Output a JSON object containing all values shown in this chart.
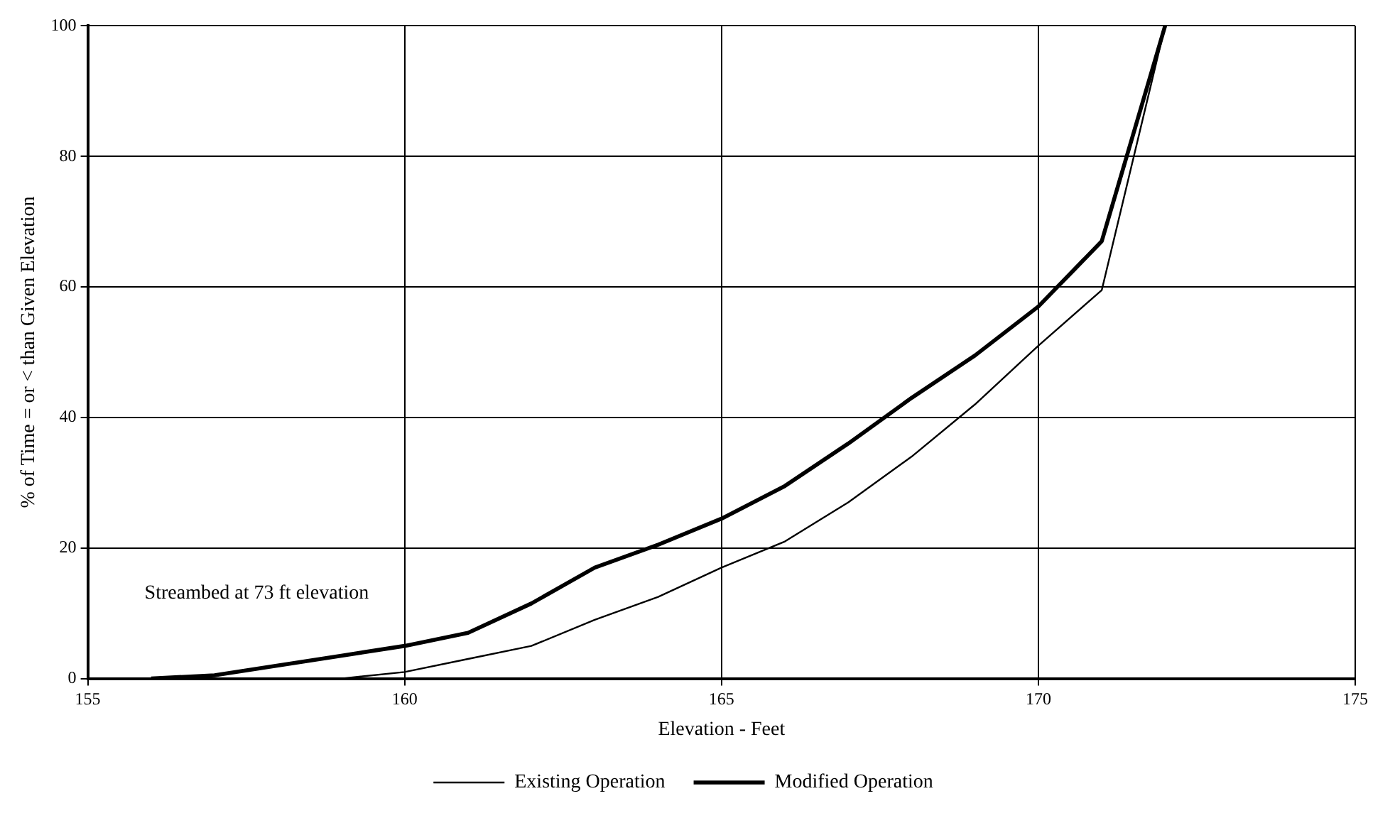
{
  "chart_data": {
    "type": "line",
    "xlabel": "Elevation - Feet",
    "ylabel": "% of Time = or < than Given Elevation",
    "annotations": [
      "Streambed at 73 ft elevation"
    ],
    "xlim": [
      155,
      175
    ],
    "xticks": [
      155,
      160,
      165,
      170,
      175
    ],
    "ylim": [
      0,
      100
    ],
    "yticks": [
      0,
      20,
      40,
      60,
      80,
      100
    ],
    "grid": true,
    "legend": "bottom",
    "marker": "none",
    "line_style": "solid",
    "x": [
      156,
      157,
      158,
      159,
      160,
      161,
      162,
      163,
      164,
      165,
      166,
      167,
      168,
      169,
      170,
      171,
      172
    ],
    "series": [
      {
        "name": "Existing Operation",
        "color": "#000000",
        "values": [
          0,
          0,
          0,
          0,
          1,
          3,
          5,
          9,
          12.5,
          17,
          21,
          27,
          34,
          42,
          51,
          59.5,
          100
        ]
      },
      {
        "name": "Modified Operation",
        "color": "#000000",
        "values": [
          0,
          0.5,
          2,
          3.5,
          5,
          7,
          11.5,
          17,
          20.5,
          24.5,
          29.5,
          36,
          43,
          49.5,
          57,
          67,
          100
        ]
      }
    ]
  }
}
